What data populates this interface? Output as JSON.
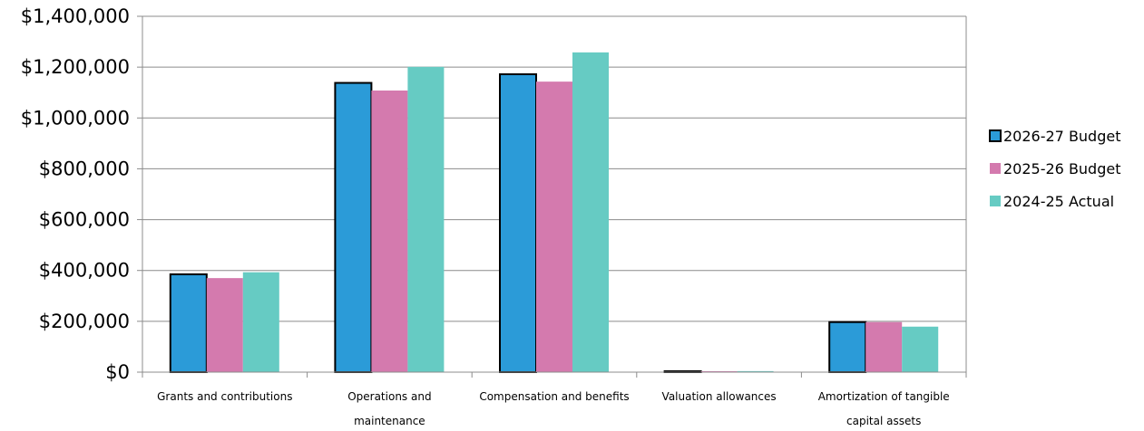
{
  "chart_data": {
    "type": "bar",
    "title": "",
    "xlabel": "",
    "ylabel": "",
    "ylim": [
      0,
      1400000
    ],
    "yticks": [
      0,
      200000,
      400000,
      600000,
      800000,
      1000000,
      1200000,
      1400000
    ],
    "ytick_labels": [
      "$0",
      "$200,000",
      "$400,000",
      "$600,000",
      "$800,000",
      "$1,000,000",
      "$1,200,000",
      "$1,400,000"
    ],
    "grid": true,
    "legend_position": "right",
    "categories": [
      [
        "Grants and contributions"
      ],
      [
        "Operations and",
        "maintenance"
      ],
      [
        "Compensation and benefits"
      ],
      [
        "Valuation allowances"
      ],
      [
        "Amortization of tangible",
        "capital assets"
      ]
    ],
    "series": [
      {
        "name": "2026-27 Budget",
        "color": "#2b9bd8",
        "outlined": true,
        "values": [
          385000,
          1138000,
          1172000,
          2000,
          197000
        ]
      },
      {
        "name": "2025-26 Budget",
        "color": "#d47aae",
        "outlined": false,
        "values": [
          370000,
          1108000,
          1143000,
          1000,
          197000
        ]
      },
      {
        "name": "2024-25 Actual",
        "color": "#66cbc3",
        "outlined": false,
        "values": [
          393000,
          1201000,
          1258000,
          4000,
          179000
        ]
      }
    ]
  }
}
